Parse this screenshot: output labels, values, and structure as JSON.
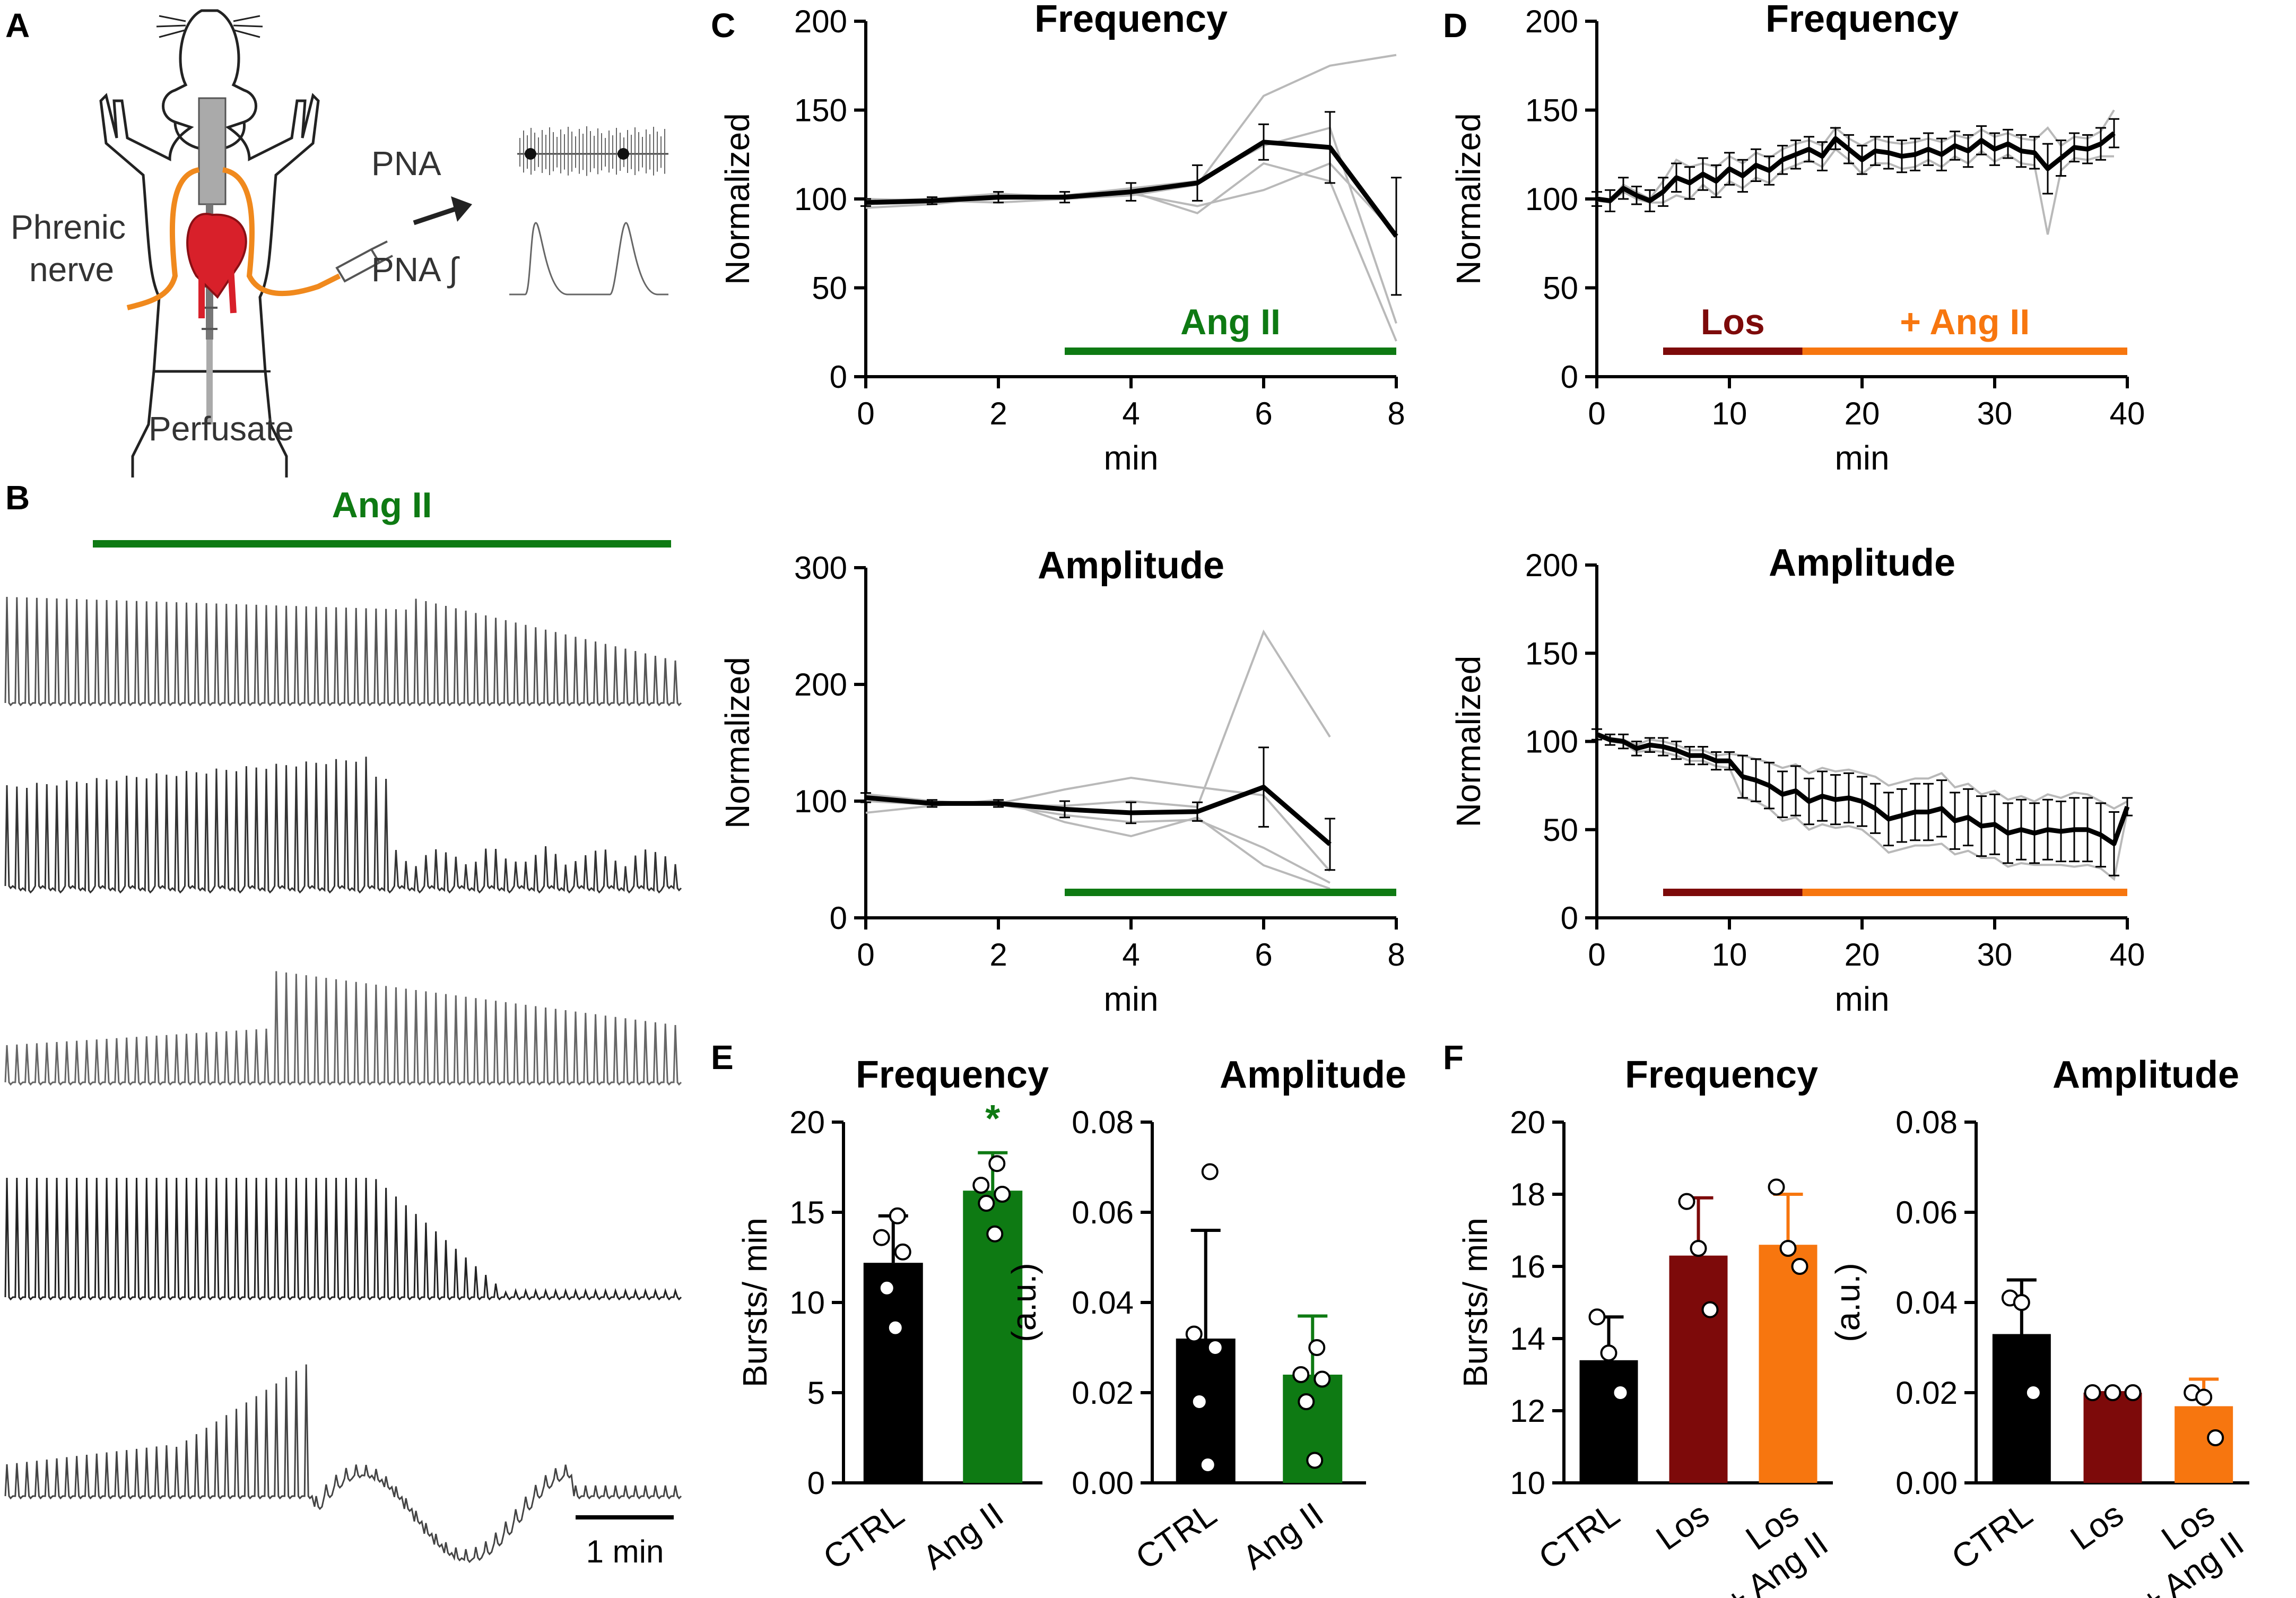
{
  "panel_letters": {
    "a": "A",
    "b": "B",
    "c": "C",
    "d": "D",
    "e": "E",
    "f": "F"
  },
  "schematic": {
    "phrenic_line1": "Phrenic",
    "phrenic_line2": "nerve",
    "pna": "PNA",
    "pna_integrated": "PNA ∫",
    "perfusate": "Perfusate"
  },
  "traces": {
    "angii_label": "Ang II",
    "scalebar_label": "1 min",
    "count": 5
  },
  "colors": {
    "black": "#000000",
    "green": "#0e7a13",
    "maroon": "#7d0a0a",
    "orange": "#f7760f",
    "grey": "#b9b9b9",
    "nerve": "#f0891d",
    "heart": "#d8202a"
  },
  "chart_data": [
    {
      "id": "c_freq",
      "type": "line",
      "title": "Frequency",
      "xlabel": "min",
      "ylabel": "Normalized",
      "xlim": [
        0,
        8
      ],
      "ylim": [
        0,
        200
      ],
      "xticks": [
        0,
        2,
        4,
        6,
        8
      ],
      "yticks": [
        0,
        50,
        100,
        150,
        200
      ],
      "mean": {
        "x": [
          0,
          1,
          2,
          3,
          4,
          5,
          6,
          7,
          8
        ],
        "y": [
          98,
          99,
          101,
          101,
          104,
          109,
          132,
          129,
          79
        ],
        "err": [
          2,
          2,
          3,
          3,
          5,
          10,
          10,
          20,
          33
        ]
      },
      "individual": [
        [
          100,
          99,
          98,
          100,
          102,
          108,
          158,
          175,
          181
        ],
        [
          97,
          98,
          100,
          102,
          106,
          110,
          130,
          140,
          30
        ],
        [
          95,
          97,
          101,
          100,
          104,
          92,
          120,
          110,
          20
        ],
        [
          99,
          100,
          103,
          101,
          103,
          96,
          105,
          120,
          80
        ]
      ],
      "bars": [
        {
          "label": "Ang II",
          "from": 3,
          "to": 8,
          "color": "#0e7a13"
        }
      ]
    },
    {
      "id": "c_amp",
      "type": "line",
      "title": "Amplitude",
      "xlabel": "min",
      "ylabel": "Normalized",
      "xlim": [
        0,
        8
      ],
      "ylim": [
        0,
        300
      ],
      "xticks": [
        0,
        2,
        4,
        6,
        8
      ],
      "yticks": [
        0,
        100,
        200,
        300
      ],
      "mean": {
        "x": [
          0,
          1,
          2,
          3,
          4,
          5,
          6,
          7
        ],
        "y": [
          103,
          98,
          98,
          93,
          90,
          91,
          112,
          63
        ],
        "err": [
          4,
          3,
          3,
          7,
          9,
          8,
          34,
          22
        ]
      },
      "individual": [
        [
          106,
          100,
          97,
          96,
          100,
          95,
          245,
          155
        ],
        [
          100,
          97,
          98,
          110,
          120,
          112,
          105,
          40
        ],
        [
          104,
          99,
          97,
          88,
          82,
          84,
          60,
          30
        ],
        [
          90,
          96,
          101,
          82,
          70,
          86,
          45,
          25
        ]
      ],
      "bars": [
        {
          "label": "",
          "from": 3,
          "to": 8,
          "color": "#0e7a13"
        }
      ]
    },
    {
      "id": "d_freq",
      "type": "line",
      "title": "Frequency",
      "xlabel": "min",
      "ylabel": "Normalized",
      "xlim": [
        0,
        40
      ],
      "ylim": [
        0,
        200
      ],
      "xticks": [
        0,
        10,
        20,
        30,
        40
      ],
      "yticks": [
        0,
        50,
        100,
        150,
        200
      ],
      "mean": {
        "x": [
          0,
          1,
          2,
          3,
          4,
          5,
          6,
          7,
          8,
          9,
          10,
          11,
          12,
          13,
          14,
          15,
          16,
          17,
          18,
          19,
          20,
          21,
          22,
          23,
          24,
          25,
          26,
          27,
          28,
          29,
          30,
          31,
          32,
          33,
          34,
          35,
          36,
          37,
          38,
          39
        ],
        "y": [
          100,
          99,
          106,
          102,
          99,
          104,
          112,
          109,
          114,
          110,
          117,
          113,
          119,
          116,
          122,
          125,
          128,
          124,
          134,
          128,
          122,
          127,
          126,
          124,
          125,
          128,
          125,
          130,
          127,
          133,
          128,
          131,
          127,
          126,
          117,
          123,
          129,
          128,
          131,
          137
        ],
        "err": [
          4,
          6,
          6,
          5,
          6,
          8,
          8,
          9,
          9,
          9,
          9,
          9,
          9,
          8,
          8,
          8,
          7,
          8,
          6,
          8,
          8,
          8,
          9,
          9,
          9,
          9,
          9,
          8,
          9,
          8,
          9,
          8,
          9,
          9,
          14,
          10,
          8,
          8,
          9,
          8
        ]
      },
      "individual": [
        [
          101,
          99,
          108,
          104,
          100,
          110,
          122,
          118,
          120,
          118,
          124,
          120,
          126,
          123,
          128,
          131,
          133,
          130,
          140,
          134,
          130,
          134,
          132,
          131,
          132,
          134,
          132,
          136,
          134,
          139,
          135,
          137,
          134,
          133,
          140,
          130,
          135,
          134,
          138,
          150
        ],
        [
          99,
          98,
          104,
          100,
          98,
          98,
          102,
          100,
          108,
          102,
          110,
          106,
          112,
          109,
          116,
          119,
          122,
          118,
          128,
          122,
          114,
          120,
          120,
          117,
          118,
          122,
          118,
          124,
          120,
          127,
          121,
          125,
          120,
          119,
          80,
          116,
          123,
          122,
          124,
          124
        ]
      ],
      "bars": [
        {
          "label": "Los",
          "from": 5,
          "to": 15.5,
          "color": "#7d0a0a"
        },
        {
          "label": "+ Ang II",
          "from": 15.5,
          "to": 40,
          "color": "#f7760f"
        }
      ]
    },
    {
      "id": "d_amp",
      "type": "line",
      "title": "Amplitude",
      "xlabel": "min",
      "ylabel": "Normalized",
      "xlim": [
        0,
        40
      ],
      "ylim": [
        0,
        200
      ],
      "xticks": [
        0,
        10,
        20,
        30,
        40
      ],
      "yticks": [
        0,
        50,
        100,
        150,
        200
      ],
      "mean": {
        "x": [
          0,
          1,
          2,
          3,
          4,
          5,
          6,
          7,
          8,
          9,
          10,
          11,
          12,
          13,
          14,
          15,
          16,
          17,
          18,
          19,
          20,
          21,
          22,
          23,
          24,
          25,
          26,
          27,
          28,
          29,
          30,
          31,
          32,
          33,
          34,
          35,
          36,
          37,
          38,
          39,
          40
        ],
        "y": [
          104,
          101,
          100,
          96,
          98,
          97,
          95,
          92,
          92,
          89,
          89,
          80,
          78,
          75,
          70,
          72,
          66,
          69,
          67,
          68,
          66,
          62,
          56,
          58,
          60,
          60,
          62,
          55,
          57,
          52,
          53,
          48,
          50,
          48,
          50,
          49,
          50,
          50,
          47,
          42,
          63
        ],
        "err": [
          3,
          3,
          4,
          4,
          4,
          5,
          5,
          5,
          5,
          5,
          5,
          12,
          12,
          13,
          13,
          14,
          13,
          14,
          14,
          14,
          14,
          14,
          15,
          15,
          16,
          16,
          16,
          16,
          16,
          17,
          17,
          17,
          17,
          17,
          17,
          17,
          18,
          18,
          18,
          18,
          5
        ]
      },
      "individual": [
        [
          105,
          102,
          101,
          98,
          101,
          100,
          98,
          95,
          95,
          92,
          93,
          92,
          90,
          88,
          85,
          87,
          82,
          85,
          83,
          84,
          82,
          80,
          75,
          77,
          79,
          79,
          82,
          74,
          76,
          70,
          72,
          67,
          69,
          66,
          70,
          68,
          71,
          70,
          66,
          62,
          66
        ],
        [
          103,
          100,
          99,
          94,
          95,
          94,
          92,
          89,
          89,
          86,
          85,
          68,
          66,
          62,
          55,
          57,
          50,
          53,
          51,
          52,
          50,
          44,
          37,
          39,
          41,
          41,
          42,
          36,
          38,
          34,
          34,
          29,
          31,
          30,
          30,
          30,
          29,
          30,
          28,
          22,
          60
        ]
      ],
      "bars": [
        {
          "label": "",
          "from": 5,
          "to": 15.5,
          "color": "#7d0a0a"
        },
        {
          "label": "",
          "from": 15.5,
          "to": 40,
          "color": "#f7760f"
        }
      ]
    },
    {
      "id": "e_freq",
      "type": "bar",
      "title": "Frequency",
      "ylabel": "Bursts/ min",
      "ylim": [
        0,
        20
      ],
      "yticks": [
        0,
        5,
        10,
        15,
        20
      ],
      "categories": [
        "CTRL",
        "Ang II"
      ],
      "values": [
        12.2,
        16.2
      ],
      "err": [
        2.6,
        2.1
      ],
      "colors": [
        "#000000",
        "#0e7a13"
      ],
      "points": [
        [
          14.8,
          13.6,
          12.8,
          10.8,
          8.6
        ],
        [
          17.7,
          16.5,
          16.0,
          15.5,
          13.8
        ]
      ],
      "annotation": {
        "text": "*",
        "category": 1,
        "color": "#0e7a13"
      }
    },
    {
      "id": "e_amp",
      "type": "bar",
      "title": "Amplitude",
      "ylabel": "(a.u.)",
      "ylim": [
        0,
        0.08
      ],
      "yticks": [
        0.0,
        0.02,
        0.04,
        0.06,
        0.08
      ],
      "ytick_labels": [
        "0.00",
        "0.02",
        "0.04",
        "0.06",
        "0.08"
      ],
      "categories": [
        "CTRL",
        "Ang II"
      ],
      "values": [
        0.032,
        0.024
      ],
      "err": [
        0.024,
        0.013
      ],
      "colors": [
        "#000000",
        "#0e7a13"
      ],
      "points": [
        [
          0.069,
          0.033,
          0.03,
          0.018,
          0.004
        ],
        [
          0.03,
          0.024,
          0.023,
          0.018,
          0.005
        ]
      ]
    },
    {
      "id": "f_freq",
      "type": "bar",
      "title": "Frequency",
      "ylabel": "Bursts/ min",
      "ylim": [
        10,
        20
      ],
      "yticks": [
        10,
        12,
        14,
        16,
        18,
        20
      ],
      "categories": [
        "CTRL",
        "Los",
        "Los\n+ Ang II"
      ],
      "values": [
        13.4,
        16.3,
        16.6
      ],
      "err": [
        1.2,
        1.6,
        1.4
      ],
      "colors": [
        "#000000",
        "#7d0a0a",
        "#f7760f"
      ],
      "points": [
        [
          14.6,
          13.6,
          12.5
        ],
        [
          17.8,
          16.5,
          14.8
        ],
        [
          18.2,
          16.5,
          16.0
        ]
      ]
    },
    {
      "id": "f_amp",
      "type": "bar",
      "title": "Amplitude",
      "ylabel": "(a.u.)",
      "ylim": [
        0,
        0.08
      ],
      "yticks": [
        0.0,
        0.02,
        0.04,
        0.06,
        0.08
      ],
      "ytick_labels": [
        "0.00",
        "0.02",
        "0.04",
        "0.06",
        "0.08"
      ],
      "categories": [
        "CTRL",
        "Los",
        "Los\n+ Ang II"
      ],
      "values": [
        0.033,
        0.02,
        0.017
      ],
      "err": [
        0.012,
        0.0,
        0.006
      ],
      "colors": [
        "#000000",
        "#7d0a0a",
        "#f7760f"
      ],
      "points": [
        [
          0.041,
          0.04,
          0.02
        ],
        [
          0.02,
          0.02,
          0.02
        ],
        [
          0.02,
          0.019,
          0.01
        ]
      ]
    }
  ]
}
